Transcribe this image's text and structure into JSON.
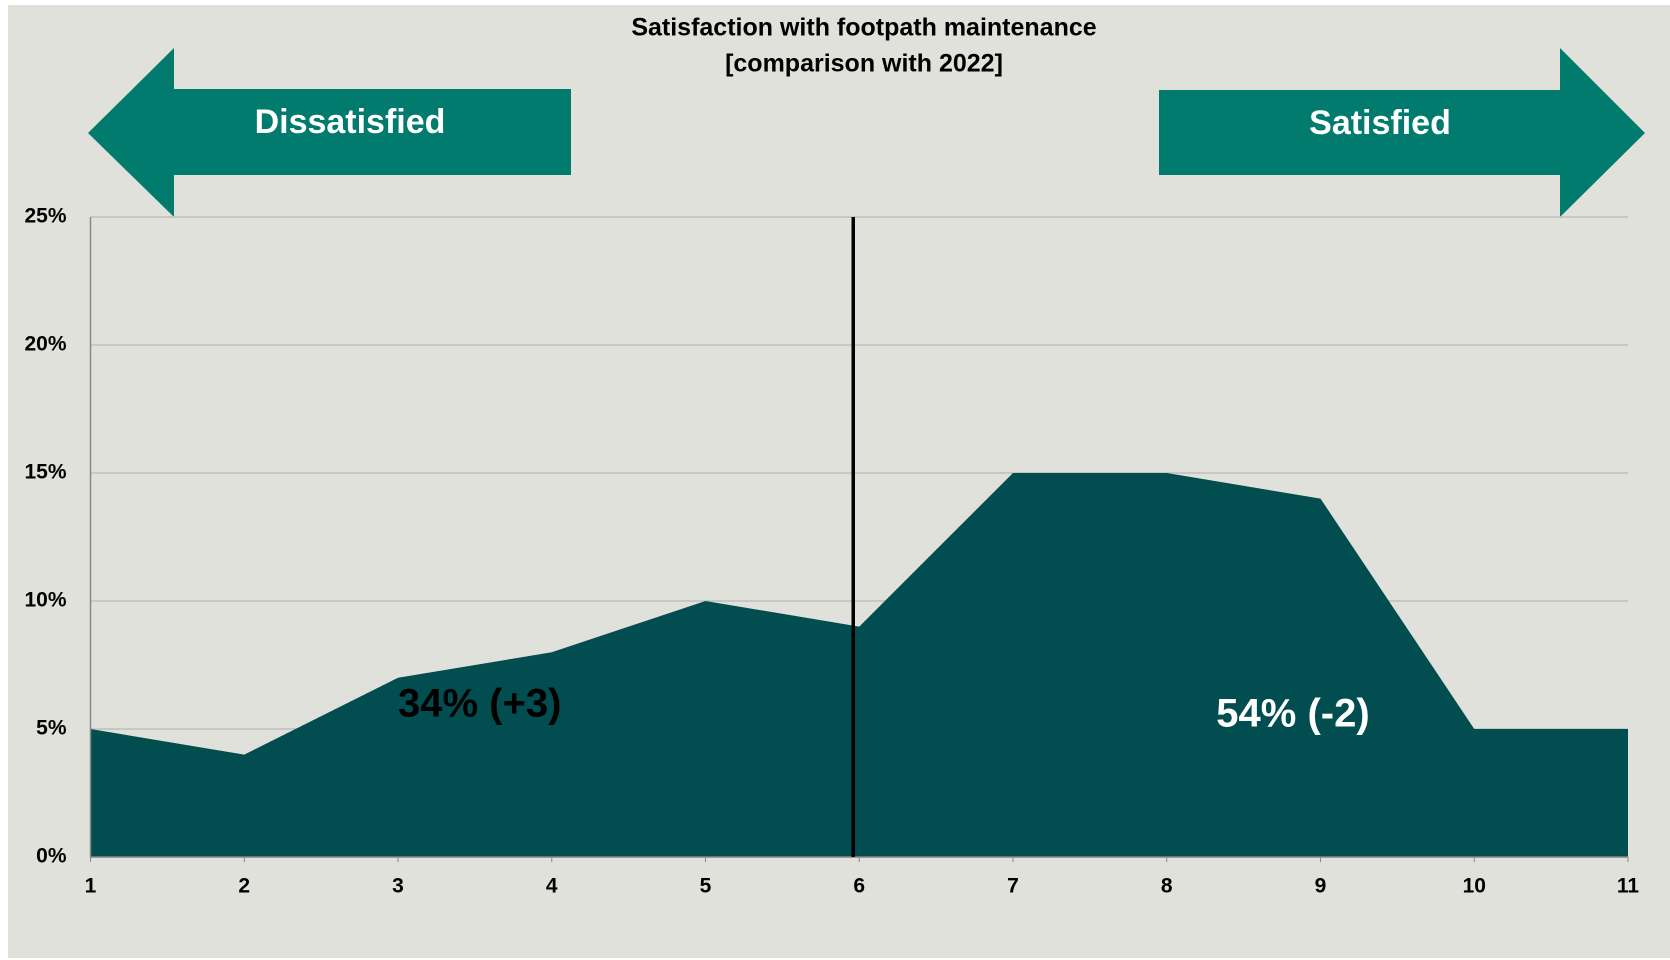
{
  "chart_data": {
    "type": "area",
    "title": "Satisfaction with footpath maintenance",
    "subtitle": "[comparison with 2022]",
    "x": [
      1,
      2,
      3,
      4,
      5,
      6,
      7,
      8,
      9,
      10,
      11
    ],
    "values": [
      5,
      4,
      7,
      8,
      10,
      9,
      15,
      15,
      14,
      5,
      5
    ],
    "color": "#024d4f",
    "xlim": [
      1,
      11
    ],
    "xticks": [
      1,
      2,
      3,
      4,
      5,
      6,
      7,
      8,
      9,
      10,
      11
    ],
    "ylim": [
      0,
      25
    ],
    "yticks": [
      {
        "value": 0,
        "label": "0%"
      },
      {
        "value": 5,
        "label": "5%"
      },
      {
        "value": 10,
        "label": "10%"
      },
      {
        "value": 15,
        "label": "15%"
      },
      {
        "value": 20,
        "label": "20%"
      },
      {
        "value": 25,
        "label": "25%"
      }
    ],
    "grid": true,
    "reference_line_x": 6,
    "left_arrow_label": "Dissatisfied",
    "right_arrow_label": "Satisfied",
    "annotations": [
      "34% (+3)",
      "54% (-2)"
    ]
  }
}
